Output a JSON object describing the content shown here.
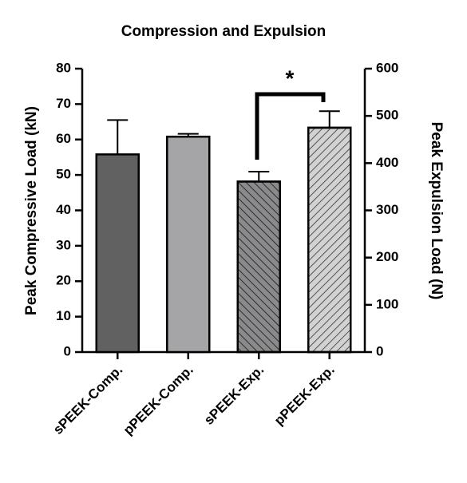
{
  "chart_data": {
    "type": "bar",
    "title": "Compression and Expulsion",
    "y_label": "Peak Compressive Load (kN)",
    "y2_label": "Peak Expulsion Load (N)",
    "categories": [
      "sPEEK-Comp.",
      "pPEEK-Comp.",
      "sPEEK-Exp.",
      "pPEEK-Exp."
    ],
    "values": [
      55.8,
      60.8,
      361,
      475
    ],
    "errors": [
      9.7,
      0.8,
      21,
      35
    ],
    "axes": [
      "y",
      "y",
      "y2",
      "y2"
    ],
    "colors": [
      "#616161",
      "#a5a5a7",
      "#8a8a8c",
      "#d2d2d2"
    ],
    "patterns": [
      null,
      null,
      "back-diagonal",
      "diagonal"
    ],
    "ylim": [
      0,
      80
    ],
    "yticks": [
      0,
      10,
      20,
      30,
      40,
      50,
      60,
      70,
      80
    ],
    "y2lim": [
      0,
      600
    ],
    "y2ticks": [
      0,
      100,
      200,
      300,
      400,
      500,
      600
    ],
    "annotations": [
      "*"
    ]
  }
}
